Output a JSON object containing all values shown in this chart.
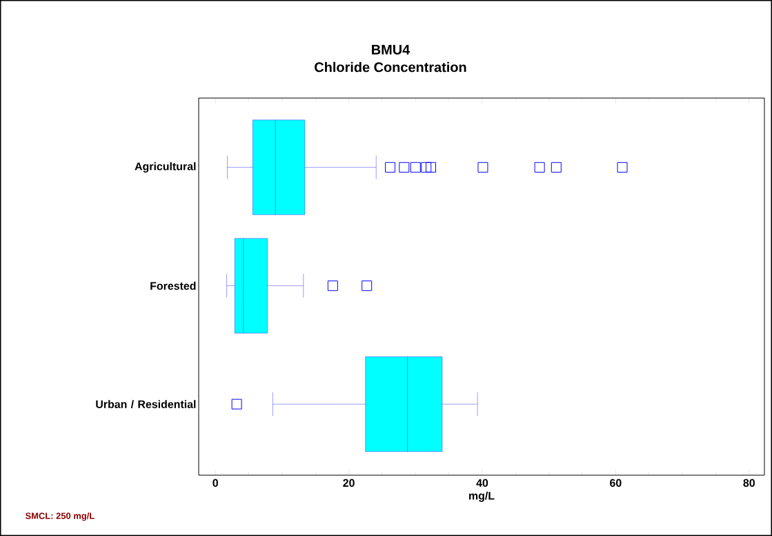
{
  "chart_data": {
    "type": "box",
    "title": "BMU4",
    "subtitle": "Chloride Concentration",
    "xlabel": "mg/L",
    "categories": [
      "Agricultural",
      "Forested",
      "Urban / Residential"
    ],
    "orientation": "horizontal",
    "color": "#00ffff",
    "marker": "square",
    "boxes": [
      {
        "low": 1.8,
        "q1": 5.6,
        "median": 9.0,
        "q3": 13.4,
        "high": 24.1,
        "outliers": [
          26.2,
          28.3,
          30.0,
          31.6,
          32.3,
          40.1,
          48.6,
          51.1,
          61.0
        ]
      },
      {
        "low": 1.7,
        "q1": 2.9,
        "median": 4.2,
        "q3": 7.8,
        "high": 13.2,
        "outliers": [
          17.6,
          22.7
        ]
      },
      {
        "low": 8.6,
        "q1": 22.5,
        "median": 28.8,
        "q3": 34.0,
        "high": 39.3,
        "outliers": [
          3.2
        ]
      }
    ],
    "xlim": [
      -2.5,
      82.3
    ],
    "xticks": [
      0,
      20,
      40,
      60,
      80
    ],
    "annotations": [
      "SMCL:  250 mg/L"
    ]
  }
}
